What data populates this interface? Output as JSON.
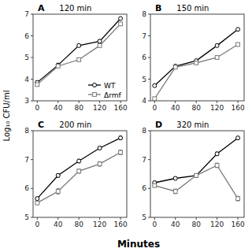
{
  "chart_data": [
    {
      "type": "line",
      "panel_label": "A",
      "title": "120 min",
      "xlabel": "Minutes",
      "ylabel": "Log₁₀ CFU/ml",
      "x": [
        0,
        40,
        80,
        120,
        160
      ],
      "xlim": [
        -8,
        172
      ],
      "xticks": [
        0,
        40,
        80,
        120,
        160
      ],
      "ylim": [
        3,
        7
      ],
      "yticks": [
        3,
        4,
        5,
        6,
        7
      ],
      "grid": false,
      "legend": "lower right",
      "series": [
        {
          "name": "WT",
          "color": "#000000",
          "marker": "circle",
          "values": [
            3.85,
            4.65,
            5.55,
            5.75,
            6.8
          ],
          "errors": [
            0.05,
            0.08,
            0.06,
            0.07,
            0.05
          ]
        },
        {
          "name": "Δrmf",
          "color": "#777777",
          "marker": "square",
          "values": [
            3.75,
            4.6,
            4.9,
            5.55,
            6.55
          ],
          "errors": [
            0.05,
            0.07,
            0.08,
            0.07,
            0.07
          ]
        }
      ]
    },
    {
      "type": "line",
      "panel_label": "B",
      "title": "150 min",
      "x": [
        0,
        40,
        80,
        120,
        160
      ],
      "xlim": [
        -8,
        172
      ],
      "xticks": [
        0,
        40,
        80,
        120,
        160
      ],
      "ylim": [
        4,
        8
      ],
      "yticks": [
        4,
        5,
        6,
        7,
        8
      ],
      "grid": false,
      "series": [
        {
          "name": "WT",
          "color": "#000000",
          "marker": "circle",
          "values": [
            4.7,
            5.6,
            5.85,
            6.55,
            7.3
          ],
          "errors": [
            0.05,
            0.06,
            0.06,
            0.06,
            0.05
          ]
        },
        {
          "name": "Δrmf",
          "color": "#777777",
          "marker": "square",
          "values": [
            4.1,
            5.55,
            5.75,
            6.0,
            6.6
          ],
          "errors": [
            0.05,
            0.07,
            0.06,
            0.08,
            0.07
          ]
        }
      ]
    },
    {
      "type": "line",
      "panel_label": "C",
      "title": "200 min",
      "x": [
        0,
        40,
        80,
        120,
        160
      ],
      "xlim": [
        -8,
        172
      ],
      "xticks": [
        0,
        40,
        80,
        120,
        160
      ],
      "ylim": [
        5,
        8
      ],
      "yticks": [
        5,
        6,
        7,
        8
      ],
      "grid": false,
      "series": [
        {
          "name": "WT",
          "color": "#000000",
          "marker": "circle",
          "values": [
            5.65,
            6.45,
            6.95,
            7.4,
            7.75
          ],
          "errors": [
            0.05,
            0.06,
            0.06,
            0.05,
            0.06
          ]
        },
        {
          "name": "Δrmf",
          "color": "#777777",
          "marker": "square",
          "values": [
            5.5,
            5.9,
            6.6,
            6.85,
            7.25
          ],
          "errors": [
            0.05,
            0.1,
            0.07,
            0.08,
            0.08
          ]
        }
      ]
    },
    {
      "type": "line",
      "panel_label": "D",
      "title": "320 min",
      "x": [
        0,
        40,
        80,
        120,
        160
      ],
      "xlim": [
        -8,
        172
      ],
      "xticks": [
        0,
        40,
        80,
        120,
        160
      ],
      "ylim": [
        5,
        8
      ],
      "yticks": [
        5,
        6,
        7,
        8
      ],
      "grid": false,
      "series": [
        {
          "name": "WT",
          "color": "#000000",
          "marker": "circle",
          "values": [
            6.2,
            6.35,
            6.45,
            7.2,
            7.75
          ],
          "errors": [
            0.05,
            0.05,
            0.05,
            0.06,
            0.05
          ]
        },
        {
          "name": "Δrmf",
          "color": "#777777",
          "marker": "square",
          "values": [
            6.1,
            5.9,
            6.45,
            6.8,
            5.65
          ],
          "errors": [
            0.05,
            0.08,
            0.06,
            0.08,
            0.08
          ]
        }
      ]
    }
  ]
}
